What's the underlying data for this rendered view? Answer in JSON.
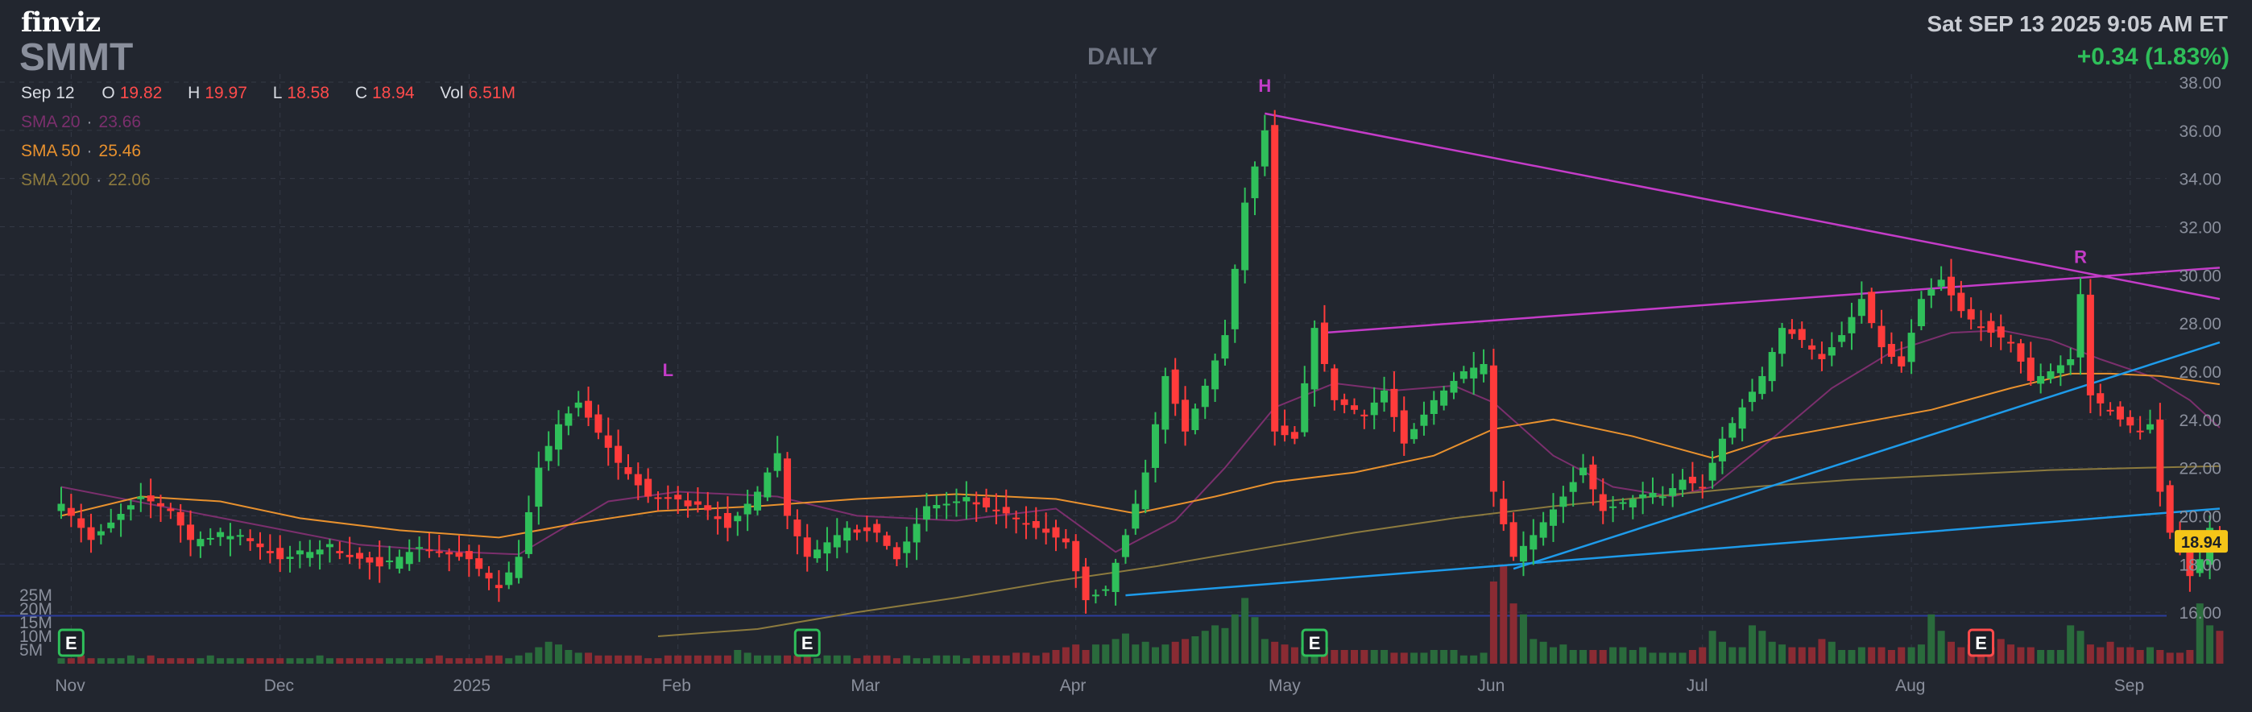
{
  "header": {
    "logo": "finviz",
    "ticker": "SMMT",
    "timeframe": "DAILY",
    "datetime": "Sat SEP 13 2025 9:05 AM ET",
    "change": "+0.34 (1.83%)"
  },
  "ohlc": {
    "date": "Sep 12",
    "open_label": "O",
    "open": "19.82",
    "high_label": "H",
    "high": "19.97",
    "low_label": "L",
    "low": "18.58",
    "close_label": "C",
    "close": "18.94",
    "vol_label": "Vol",
    "vol": "6.51M"
  },
  "sma": [
    {
      "label": "SMA 20",
      "value": "23.66",
      "color": "#7b2f6d"
    },
    {
      "label": "SMA 50",
      "value": "25.46",
      "color": "#e8912e"
    },
    {
      "label": "SMA 200",
      "value": "22.06",
      "color": "#8c7a3e"
    }
  ],
  "colors": {
    "background": "#22262f",
    "up": "#2fbf5a",
    "down": "#ff3b3b",
    "trendline_pink": "#c43cc8",
    "trendline_blue": "#1e9bea",
    "price_tag": "#f5c518"
  },
  "chart_data": {
    "type": "candlestick",
    "price_axis": {
      "ylim": [
        15,
        38
      ],
      "ticks": [
        16,
        18,
        20,
        22,
        24,
        26,
        28,
        30,
        32,
        34,
        36,
        38
      ]
    },
    "volume_axis": {
      "ticks": [
        "5M",
        "10M",
        "15M",
        "20M",
        "25M"
      ],
      "max": 40
    },
    "x_labels": [
      {
        "label": "Nov",
        "i": 1
      },
      {
        "label": "Dec",
        "i": 22
      },
      {
        "label": "2025",
        "i": 41
      },
      {
        "label": "Feb",
        "i": 62
      },
      {
        "label": "Mar",
        "i": 81
      },
      {
        "label": "Apr",
        "i": 102
      },
      {
        "label": "May",
        "i": 123
      },
      {
        "label": "Jun",
        "i": 144
      },
      {
        "label": "Jul",
        "i": 165
      },
      {
        "label": "Aug",
        "i": 186
      },
      {
        "label": "Sep",
        "i": 208
      }
    ],
    "last_price": "18.94",
    "anchors": [
      [
        0,
        20.5
      ],
      [
        3,
        19.0
      ],
      [
        8,
        20.8
      ],
      [
        11,
        20.2
      ],
      [
        13,
        19.0
      ],
      [
        18,
        19.2
      ],
      [
        22,
        18.2
      ],
      [
        27,
        18.7
      ],
      [
        32,
        17.9
      ],
      [
        36,
        18.7
      ],
      [
        41,
        18.2
      ],
      [
        44,
        17.0
      ],
      [
        46,
        18.3
      ],
      [
        48,
        22.0
      ],
      [
        50,
        23.8
      ],
      [
        52,
        24.7
      ],
      [
        56,
        22.2
      ],
      [
        59,
        20.8
      ],
      [
        64,
        20.6
      ],
      [
        67,
        19.5
      ],
      [
        70,
        21.0
      ],
      [
        72,
        22.6
      ],
      [
        73,
        20.0
      ],
      [
        75,
        18.3
      ],
      [
        79,
        19.5
      ],
      [
        82,
        19.3
      ],
      [
        84,
        18.2
      ],
      [
        87,
        20.4
      ],
      [
        91,
        20.6
      ],
      [
        95,
        20.1
      ],
      [
        98,
        19.5
      ],
      [
        101,
        18.9
      ],
      [
        103,
        16.5
      ],
      [
        105,
        16.9
      ],
      [
        107,
        19.2
      ],
      [
        109,
        21.8
      ],
      [
        111,
        25.8
      ],
      [
        113,
        23.5
      ],
      [
        115,
        25.4
      ],
      [
        117,
        27.5
      ],
      [
        119,
        33.0
      ],
      [
        121,
        36.0
      ],
      [
        122,
        23.5
      ],
      [
        124,
        23.2
      ],
      [
        126,
        27.8
      ],
      [
        128,
        24.8
      ],
      [
        131,
        24.2
      ],
      [
        133,
        25.2
      ],
      [
        135,
        23.0
      ],
      [
        138,
        24.8
      ],
      [
        141,
        26.0
      ],
      [
        143,
        26.3
      ],
      [
        144,
        21.0
      ],
      [
        146,
        18.3
      ],
      [
        148,
        19.2
      ],
      [
        151,
        20.8
      ],
      [
        153,
        22.0
      ],
      [
        155,
        20.2
      ],
      [
        158,
        20.7
      ],
      [
        161,
        20.8
      ],
      [
        163,
        21.5
      ],
      [
        165,
        21.2
      ],
      [
        167,
        23.2
      ],
      [
        169,
        24.5
      ],
      [
        171,
        25.8
      ],
      [
        173,
        27.8
      ],
      [
        175,
        27.3
      ],
      [
        177,
        26.5
      ],
      [
        179,
        27.5
      ],
      [
        181,
        29.0
      ],
      [
        183,
        27.0
      ],
      [
        185,
        26.2
      ],
      [
        187,
        29.0
      ],
      [
        189,
        29.8
      ],
      [
        191,
        28.5
      ],
      [
        193,
        27.8
      ],
      [
        196,
        27.2
      ],
      [
        198,
        25.6
      ],
      [
        200,
        26.0
      ],
      [
        202,
        26.5
      ],
      [
        203,
        29.2
      ],
      [
        204,
        25.0
      ],
      [
        207,
        24.0
      ],
      [
        209,
        23.5
      ],
      [
        210,
        23.8
      ],
      [
        211,
        21.0
      ],
      [
        212,
        19.3
      ],
      [
        213,
        18.8
      ],
      [
        214,
        17.5
      ],
      [
        215,
        18.2
      ],
      [
        216,
        19.5
      ],
      [
        217,
        18.94
      ]
    ],
    "volume": [
      2,
      2,
      3,
      2,
      2,
      2,
      2,
      3,
      2,
      3,
      2,
      2,
      2,
      2,
      2,
      3,
      2,
      2,
      2,
      2,
      2,
      2,
      2,
      2,
      2,
      2,
      3,
      2,
      2,
      2,
      2,
      2,
      2,
      2,
      2,
      2,
      2,
      2,
      3,
      2,
      2,
      2,
      2,
      3,
      3,
      2,
      3,
      4,
      6,
      8,
      7,
      5,
      4,
      4,
      3,
      3,
      3,
      3,
      3,
      2,
      2,
      3,
      3,
      3,
      3,
      3,
      3,
      3,
      5,
      4,
      3,
      3,
      3,
      3,
      3,
      3,
      2,
      3,
      3,
      3,
      2,
      3,
      3,
      3,
      2,
      3,
      2,
      2,
      3,
      3,
      3,
      2,
      3,
      3,
      3,
      3,
      4,
      4,
      3,
      4,
      5,
      6,
      7,
      5,
      7,
      7,
      9,
      11,
      7,
      8,
      6,
      7,
      8,
      9,
      10,
      12,
      14,
      13,
      18,
      24,
      17,
      9,
      8,
      7,
      6,
      6,
      5,
      6,
      5,
      5,
      5,
      5,
      5,
      5,
      4,
      4,
      4,
      4,
      5,
      5,
      5,
      3,
      3,
      4,
      30,
      36,
      22,
      18,
      9,
      8,
      6,
      7,
      5,
      5,
      5,
      5,
      6,
      6,
      5,
      6,
      4,
      4,
      4,
      4,
      5,
      6,
      12,
      8,
      6,
      6,
      14,
      12,
      8,
      7,
      6,
      6,
      6,
      9,
      8,
      5,
      5,
      6,
      6,
      6,
      5,
      6,
      6,
      7,
      18,
      12,
      8,
      6,
      7,
      6,
      6,
      9,
      7,
      6,
      6,
      5,
      5,
      5,
      14,
      12,
      7,
      6,
      8,
      6,
      6,
      5,
      6,
      5,
      4,
      4,
      5,
      22,
      14,
      12,
      18,
      10,
      9
    ],
    "sma_series": [
      {
        "name": "SMA 20",
        "points": [
          [
            0,
            21.2
          ],
          [
            10,
            20.4
          ],
          [
            20,
            19.6
          ],
          [
            30,
            18.8
          ],
          [
            40,
            18.5
          ],
          [
            46,
            18.4
          ],
          [
            55,
            20.6
          ],
          [
            62,
            21.0
          ],
          [
            72,
            20.8
          ],
          [
            80,
            20.0
          ],
          [
            90,
            19.8
          ],
          [
            100,
            20.3
          ],
          [
            106,
            18.5
          ],
          [
            112,
            19.8
          ],
          [
            117,
            22.0
          ],
          [
            122,
            24.5
          ],
          [
            128,
            25.5
          ],
          [
            134,
            25.2
          ],
          [
            140,
            25.4
          ],
          [
            144,
            24.7
          ],
          [
            150,
            22.5
          ],
          [
            156,
            21.2
          ],
          [
            162,
            20.8
          ],
          [
            166,
            21.2
          ],
          [
            172,
            23.2
          ],
          [
            178,
            25.3
          ],
          [
            184,
            26.8
          ],
          [
            190,
            27.6
          ],
          [
            195,
            27.7
          ],
          [
            200,
            27.3
          ],
          [
            205,
            26.5
          ],
          [
            210,
            25.8
          ],
          [
            214,
            24.8
          ],
          [
            217,
            23.66
          ]
        ]
      },
      {
        "name": "SMA 50",
        "points": [
          [
            0,
            20.0
          ],
          [
            8,
            20.8
          ],
          [
            16,
            20.6
          ],
          [
            24,
            19.9
          ],
          [
            34,
            19.4
          ],
          [
            44,
            19.1
          ],
          [
            52,
            19.7
          ],
          [
            60,
            20.2
          ],
          [
            70,
            20.4
          ],
          [
            80,
            20.7
          ],
          [
            90,
            20.9
          ],
          [
            100,
            20.7
          ],
          [
            108,
            20.1
          ],
          [
            116,
            20.8
          ],
          [
            122,
            21.4
          ],
          [
            130,
            21.8
          ],
          [
            138,
            22.5
          ],
          [
            144,
            23.6
          ],
          [
            150,
            24.0
          ],
          [
            158,
            23.3
          ],
          [
            166,
            22.4
          ],
          [
            172,
            23.2
          ],
          [
            180,
            23.8
          ],
          [
            188,
            24.4
          ],
          [
            196,
            25.3
          ],
          [
            202,
            25.9
          ],
          [
            206,
            25.9
          ],
          [
            211,
            25.8
          ],
          [
            217,
            25.46
          ]
        ]
      },
      {
        "name": "SMA 200",
        "points": [
          [
            60,
            15.0
          ],
          [
            70,
            15.3
          ],
          [
            80,
            16.0
          ],
          [
            90,
            16.6
          ],
          [
            100,
            17.3
          ],
          [
            110,
            17.9
          ],
          [
            120,
            18.6
          ],
          [
            130,
            19.3
          ],
          [
            140,
            19.9
          ],
          [
            150,
            20.4
          ],
          [
            160,
            20.8
          ],
          [
            170,
            21.2
          ],
          [
            180,
            21.5
          ],
          [
            190,
            21.7
          ],
          [
            200,
            21.9
          ],
          [
            210,
            22.0
          ],
          [
            217,
            22.06
          ]
        ]
      }
    ],
    "trendlines": [
      {
        "color": "#c43cc8",
        "from": [
          121,
          36.7
        ],
        "to": [
          217,
          29.0
        ]
      },
      {
        "color": "#c43cc8",
        "from": [
          127,
          27.6
        ],
        "to": [
          217,
          30.3
        ]
      },
      {
        "color": "#1e9bea",
        "from": [
          107,
          16.7
        ],
        "to": [
          217,
          20.3
        ]
      },
      {
        "color": "#1e9bea",
        "from": [
          146,
          17.8
        ],
        "to": [
          217,
          27.2
        ]
      }
    ],
    "markers": [
      {
        "label": "H",
        "i": 121,
        "y": 37.6
      },
      {
        "label": "L",
        "i": 61,
        "y": 25.8
      },
      {
        "label": "R",
        "i": 203,
        "y": 30.5
      }
    ],
    "earnings": [
      {
        "label": "E",
        "i": 1,
        "color": "#2fbf5a"
      },
      {
        "label": "E",
        "i": 75,
        "color": "#2fbf5a"
      },
      {
        "label": "E",
        "i": 126,
        "color": "#2fbf5a"
      },
      {
        "label": "E",
        "i": 193,
        "color": "#ff4b4b"
      }
    ],
    "volume_avg_line": 17.5
  }
}
